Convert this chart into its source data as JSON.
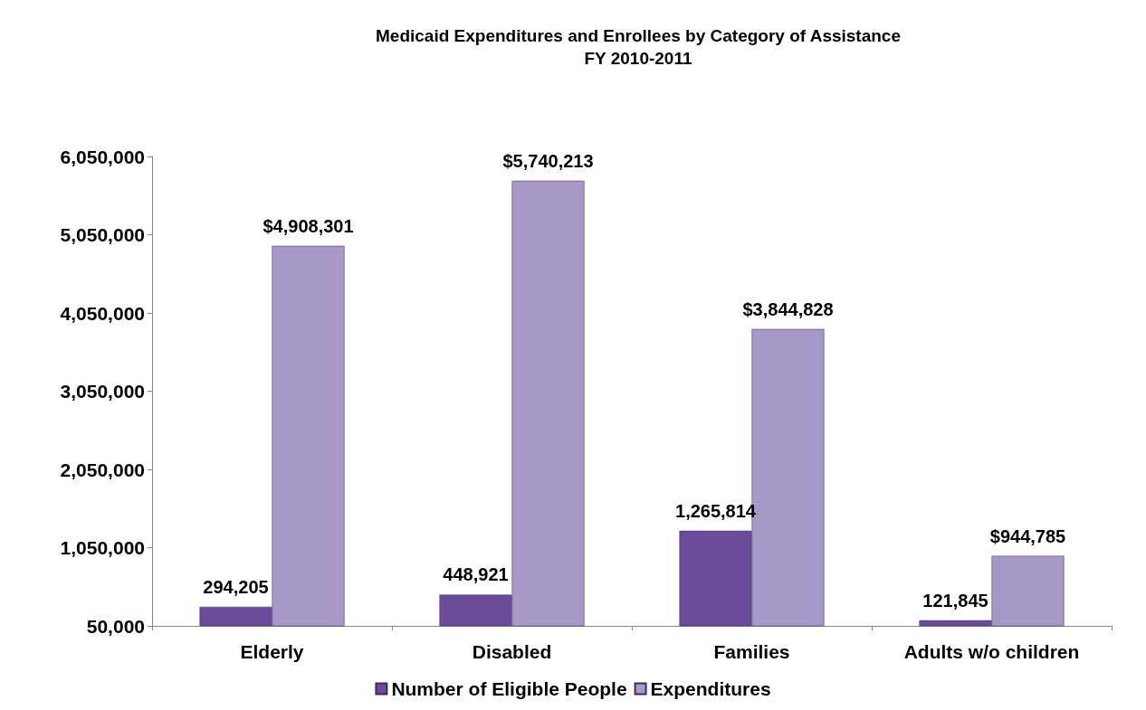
{
  "chart_data": {
    "type": "bar",
    "title": "Medicaid Expenditures and Enrollees by Category of Assistance\nFY 2010-2011",
    "categories": [
      "Elderly",
      "Disabled",
      "Families",
      "Adults w/o children"
    ],
    "series": [
      {
        "name": "Number of Eligible People",
        "color": "#6b4c9a",
        "values": [
          294205,
          448921,
          1265814,
          121845
        ],
        "value_labels": [
          "294,205",
          "448,921",
          "1,265,814",
          "121,845"
        ]
      },
      {
        "name": "Expenditures",
        "color": "#a898c8",
        "values": [
          4908301,
          5740213,
          3844828,
          944785
        ],
        "value_labels": [
          "$4,908,301",
          "$5,740,213",
          "$3,844,828",
          "$944,785"
        ]
      }
    ],
    "ylim": [
      50000,
      6050000
    ],
    "yticks": [
      {
        "value": 50000,
        "label": "50,000"
      },
      {
        "value": 1050000,
        "label": "1,050,000"
      },
      {
        "value": 2050000,
        "label": "2,050,000"
      },
      {
        "value": 3050000,
        "label": "3,050,000"
      },
      {
        "value": 4050000,
        "label": "4,050,000"
      },
      {
        "value": 5050000,
        "label": "5,050,000"
      },
      {
        "value": 6050000,
        "label": "6,050,000"
      }
    ],
    "grid": false,
    "legend": "bottom"
  }
}
